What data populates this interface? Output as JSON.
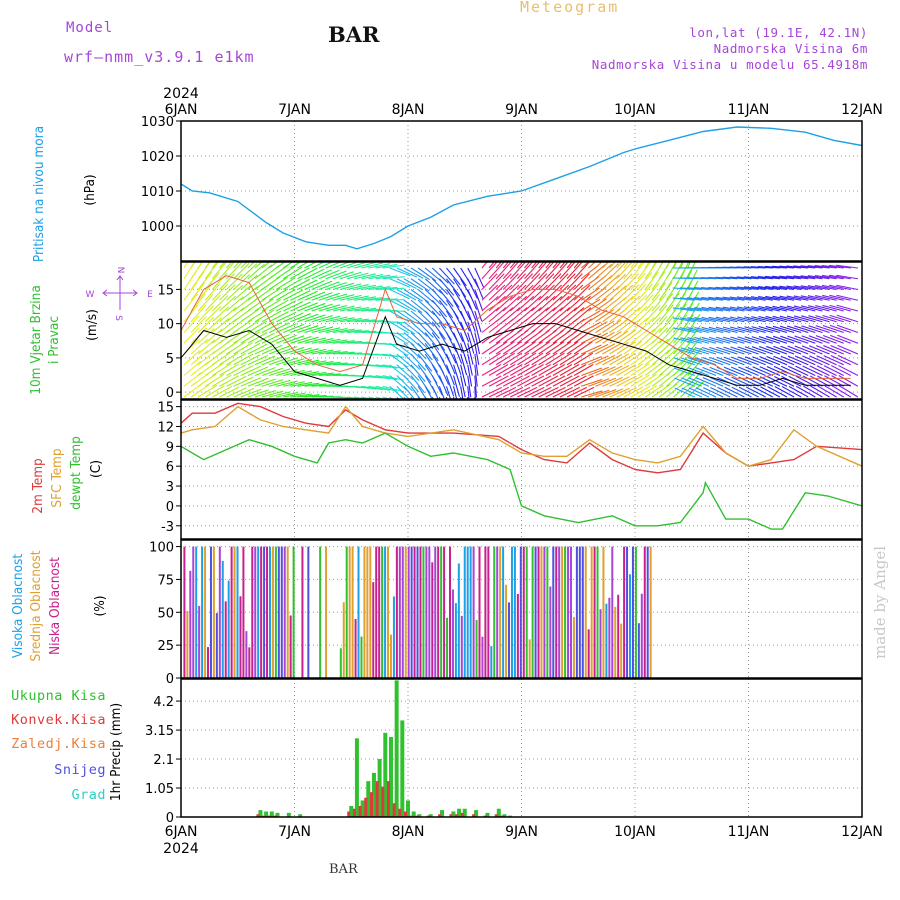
{
  "header": {
    "model_label": "Model",
    "model_name": "wrf–nmm_v3.9.1  e1km",
    "station": "BAR",
    "meteogram": "Meteogram",
    "lonlat": "lon,lat (19.1E, 42.1N)",
    "altitude": "Nadmorska Visina 6m",
    "model_altitude": "Nadmorska Visina u modelu 65.4918m",
    "watermark": "made by Angel",
    "footer": "BAR",
    "colors": {
      "purple": "#a646d8",
      "meteogram": "#e8c070",
      "watermark": "#c8c8c8"
    }
  },
  "time_axis": {
    "year": "2024",
    "ticks": [
      "6JAN",
      "7JAN",
      "8JAN",
      "9JAN",
      "10JAN",
      "11JAN",
      "12JAN"
    ]
  },
  "chart_data": [
    {
      "id": "pressure",
      "type": "line",
      "ylabel": "Pritisak na nivou mora",
      "unit": "(hPa)",
      "yticks": [
        "1030",
        "1020",
        "1010",
        "1000"
      ],
      "ylim": [
        990,
        1030
      ],
      "color": "#1ea0e6",
      "x": [
        0,
        0.1,
        0.25,
        0.5,
        0.75,
        0.9,
        1.1,
        1.3,
        1.45,
        1.55,
        1.7,
        1.85,
        2.0,
        2.2,
        2.4,
        2.7,
        3.0,
        3.3,
        3.6,
        3.9,
        4.0,
        4.3,
        4.6,
        4.9,
        5.2,
        5.5,
        5.75,
        6.0
      ],
      "y": [
        1012,
        1010,
        1009.5,
        1007,
        1001,
        998,
        995.5,
        994.5,
        994.5,
        993.5,
        995,
        997,
        1000,
        1002.5,
        1006,
        1008.5,
        1010,
        1013.5,
        1017,
        1021,
        1022,
        1024.5,
        1027,
        1028.3,
        1027.9,
        1026.8,
        1024.5,
        1023
      ]
    },
    {
      "id": "wind",
      "type": "line",
      "ylabel": "10m Vjetar Brzina i Pravac",
      "unit": "(m/s)",
      "compass": {
        "n": "N",
        "e": "E",
        "s": "S",
        "w": "W"
      },
      "yticks": [
        "15",
        "10",
        "5",
        "0"
      ],
      "ylim": [
        -1,
        19
      ],
      "series": [
        {
          "color": "#000000",
          "x": [
            0,
            0.2,
            0.4,
            0.6,
            0.8,
            1.0,
            1.2,
            1.4,
            1.6,
            1.8,
            1.9,
            2.1,
            2.3,
            2.5,
            2.7,
            2.9,
            3.1,
            3.3,
            3.5,
            3.7,
            3.9,
            4.1,
            4.3,
            4.5,
            4.7,
            4.9,
            5.1,
            5.3,
            5.5,
            5.7,
            5.9
          ],
          "y": [
            5,
            9,
            8,
            9,
            7,
            3,
            2,
            1,
            2,
            11,
            7,
            6,
            7,
            6,
            8,
            9,
            10,
            10,
            9,
            8,
            7,
            6,
            4,
            3,
            2,
            1,
            1,
            2,
            1,
            1,
            1
          ]
        },
        {
          "color": "#e8643c",
          "x": [
            0,
            0.2,
            0.4,
            0.6,
            0.8,
            1.0,
            1.2,
            1.4,
            1.6,
            1.8,
            1.9,
            2.1,
            2.3,
            2.5,
            2.7,
            2.9,
            3.1,
            3.3,
            3.5,
            3.7,
            3.9,
            4.1,
            4.3,
            4.5,
            4.7,
            4.9,
            5.1,
            5.3,
            5.5,
            5.7,
            5.9
          ],
          "y": [
            9,
            15,
            17,
            16,
            10,
            6,
            4,
            3,
            4,
            15,
            11,
            10,
            10,
            9,
            12,
            14,
            15,
            15,
            14,
            12,
            11,
            9,
            7,
            5,
            4,
            2,
            2,
            3,
            2,
            2,
            2
          ]
        }
      ]
    },
    {
      "id": "temperature",
      "type": "line",
      "ylabels": [
        {
          "text": "2m Temp",
          "color": "#e03a3a"
        },
        {
          "text": "SFC Temp",
          "color": "#e0a030"
        },
        {
          "text": "dewpt Temp",
          "color": "#30c030"
        }
      ],
      "unit": "(C)",
      "yticks": [
        "15",
        "12",
        "9",
        "6",
        "3",
        "0",
        "-3"
      ],
      "ylim": [
        -5,
        16
      ],
      "series": [
        {
          "name": "2m Temp",
          "color": "#e03a3a",
          "x": [
            0,
            0.1,
            0.3,
            0.5,
            0.7,
            0.9,
            1.1,
            1.3,
            1.45,
            1.6,
            1.8,
            2.0,
            2.4,
            2.8,
            3.0,
            3.2,
            3.4,
            3.6,
            3.8,
            4.0,
            4.2,
            4.4,
            4.6,
            4.8,
            5.0,
            5.2,
            5.4,
            5.6,
            6.0
          ],
          "y": [
            12.5,
            14,
            14,
            15.5,
            15,
            13.5,
            12.5,
            12,
            14.5,
            13,
            11.5,
            11,
            11,
            10.5,
            8.5,
            7,
            6.5,
            9.5,
            7,
            5.5,
            5,
            5.5,
            11,
            8,
            6,
            6.5,
            7,
            9,
            8.5
          ]
        },
        {
          "name": "SFC Temp",
          "color": "#e0a030",
          "x": [
            0,
            0.1,
            0.3,
            0.5,
            0.7,
            0.9,
            1.1,
            1.3,
            1.45,
            1.6,
            1.8,
            2.0,
            2.4,
            2.8,
            3.0,
            3.2,
            3.4,
            3.6,
            3.8,
            4.0,
            4.2,
            4.4,
            4.6,
            4.8,
            5.0,
            5.2,
            5.4,
            5.6,
            6.0
          ],
          "y": [
            11,
            11.5,
            12,
            15,
            13,
            12,
            11.5,
            11,
            15,
            12,
            11,
            10.5,
            11.5,
            10,
            8,
            7.5,
            7.5,
            10,
            8,
            7,
            6.5,
            7.5,
            12,
            8,
            6,
            7,
            11.5,
            9,
            6
          ]
        },
        {
          "name": "dewpt Temp",
          "color": "#30c030",
          "x": [
            0,
            0.1,
            0.2,
            0.4,
            0.6,
            0.8,
            1.0,
            1.2,
            1.3,
            1.45,
            1.6,
            1.8,
            2.0,
            2.2,
            2.4,
            2.7,
            2.9,
            3.0,
            3.2,
            3.5,
            3.8,
            4.0,
            4.2,
            4.4,
            4.6,
            4.62,
            4.8,
            5.0,
            5.2,
            5.3,
            5.5,
            5.7,
            6.0
          ],
          "y": [
            9,
            8,
            7,
            8.5,
            10,
            9,
            7.5,
            6.5,
            9.5,
            10,
            9.5,
            11,
            9,
            7.5,
            8,
            7,
            5.5,
            0,
            -1.5,
            -2.5,
            -1.5,
            -3,
            -3,
            -2.5,
            2,
            3.5,
            -2,
            -2,
            -3.5,
            -3.5,
            2,
            1.5,
            0
          ]
        }
      ]
    },
    {
      "id": "cloud",
      "type": "bar",
      "ylabels": [
        {
          "text": "Visoka Oblacnost",
          "color": "#1ea0e6"
        },
        {
          "text": "Srednja Oblacnost",
          "color": "#e0a030"
        },
        {
          "text": "Niska Oblacnost",
          "color": "#c8208c"
        }
      ],
      "unit": "(%)",
      "yticks": [
        "100",
        "75",
        "50",
        "25",
        "0"
      ],
      "ylim": [
        0,
        105
      ],
      "colors": [
        "#e0a030",
        "#1ea0e6",
        "#c8208c",
        "#a646d8",
        "#30c030",
        "#5050e0"
      ]
    },
    {
      "id": "precip",
      "type": "bar",
      "ylabel": "1hr Precip (mm)",
      "legend": [
        {
          "text": "Ukupna Kisa",
          "color": "#30c030"
        },
        {
          "text": "Konvek.Kisa",
          "color": "#e03a3a"
        },
        {
          "text": "Zaledj.Kisa",
          "color": "#e8803c"
        },
        {
          "text": "Snijeg",
          "color": "#5050e0"
        },
        {
          "text": "Grad",
          "color": "#2ad0c0"
        }
      ],
      "yticks": [
        "4.2",
        "3.15",
        "2.1",
        "1.05",
        "0"
      ],
      "ylim": [
        0,
        5.0
      ],
      "x": [
        0.7,
        0.75,
        0.8,
        0.85,
        0.95,
        1.05,
        1.5,
        1.55,
        1.6,
        1.65,
        1.7,
        1.75,
        1.8,
        1.85,
        1.9,
        1.95,
        2.0,
        2.05,
        2.1,
        2.2,
        2.3,
        2.4,
        2.45,
        2.5,
        2.6,
        2.7,
        2.8,
        2.85,
        2.9
      ],
      "total": [
        0.25,
        0.2,
        0.2,
        0.15,
        0.15,
        0.1,
        0.4,
        2.85,
        0.6,
        1.3,
        1.6,
        2.1,
        3.05,
        2.9,
        4.95,
        3.5,
        0.6,
        0.2,
        0.1,
        0.1,
        0.25,
        0.2,
        0.3,
        0.3,
        0.25,
        0.15,
        0.3,
        0.1,
        0.05
      ],
      "convective": [
        0.1,
        0.05,
        0.05,
        0.05,
        0.0,
        0.0,
        0.2,
        0.3,
        0.4,
        0.7,
        0.9,
        1.3,
        1.1,
        1.3,
        0.5,
        0.3,
        0.2,
        0.05,
        0.05,
        0.05,
        0.1,
        0.1,
        0.1,
        0.15,
        0.1,
        0.05,
        0.1,
        0.05,
        0.0
      ]
    }
  ]
}
